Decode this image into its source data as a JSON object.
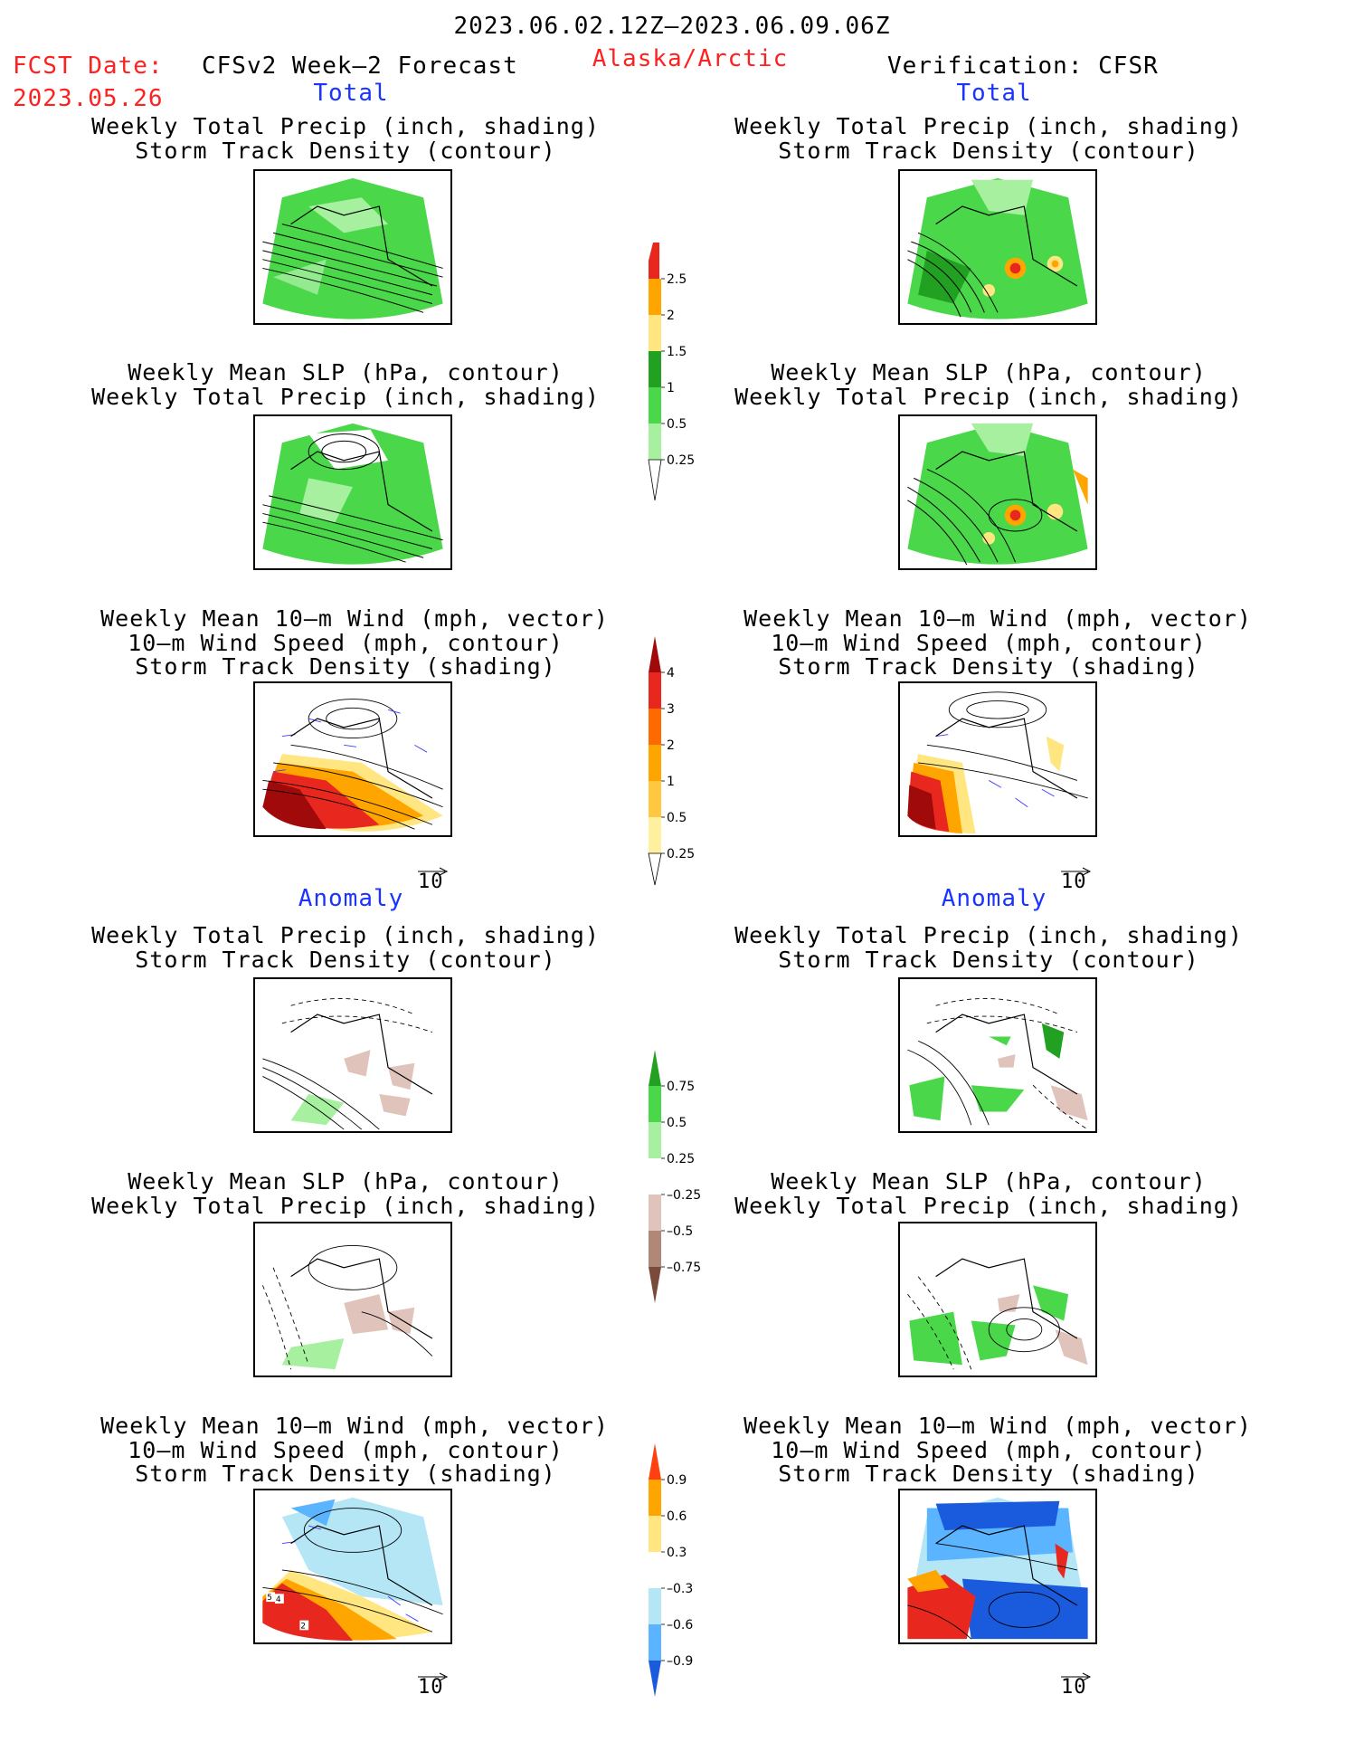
{
  "header": {
    "period": "2023.06.02.12Z–2023.06.09.06Z",
    "fcst_date_label": "FCST Date:",
    "fcst_date_value": "2023.05.26",
    "forecast_label": "CFSv2 Week–2 Forecast",
    "region": "Alaska/Arctic",
    "verification_label": "Verification: CFSR"
  },
  "sections": {
    "total": "Total",
    "anomaly": "Anomaly"
  },
  "titles": {
    "precip_std_1": "Weekly Total Precip (inch, shading)",
    "precip_std_2": "Storm Track Density (contour)",
    "slp_1": "Weekly Mean SLP (hPa, contour)",
    "slp_2": "Weekly Total Precip (inch, shading)",
    "wind_1": "Weekly Mean 10–m Wind (mph, vector)",
    "wind_2": "10–m Wind Speed (mph, contour)",
    "wind_3": "Storm Track Density (shading)"
  },
  "vector_ref": "10",
  "colors": {
    "precip_light": "#a6f0a0",
    "precip_mid": "#4ad84a",
    "precip_dark": "#22a022",
    "precip_yellow": "#ffe680",
    "precip_orange": "#ffa500",
    "precip_red": "#e8281e",
    "brown_light": "#e0c4bc",
    "brown_mid": "#b08878",
    "brown_dark": "#7a4b3a",
    "blue_light": "#b4e6f5",
    "blue_mid": "#5ab4ff",
    "blue_dark": "#1a5adc",
    "darkred": "#a00a0a"
  },
  "chart_data": [
    {
      "type": "heatmap",
      "name": "colorbar_precip_total",
      "tick_labels": [
        "2.5",
        "2",
        "1.5",
        "1",
        "0.5",
        "0.25"
      ]
    },
    {
      "type": "heatmap",
      "name": "colorbar_storm_track_total",
      "tick_labels": [
        "4",
        "3",
        "2",
        "1",
        "0.5",
        "0.25"
      ]
    },
    {
      "type": "heatmap",
      "name": "colorbar_precip_anomaly",
      "tick_labels": [
        "0.75",
        "0.5",
        "0.25",
        "–0.25",
        "–0.5",
        "–0.75"
      ]
    },
    {
      "type": "heatmap",
      "name": "colorbar_storm_track_anomaly",
      "tick_labels": [
        "0.9",
        "0.6",
        "0.3",
        "–0.3",
        "–0.6",
        "–0.9"
      ]
    }
  ]
}
